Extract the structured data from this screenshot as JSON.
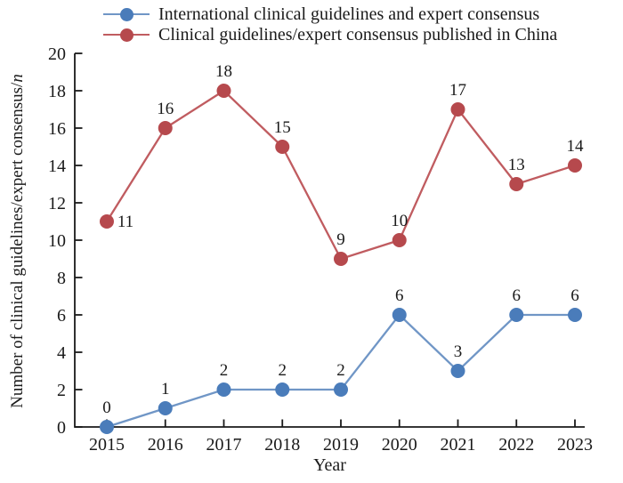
{
  "window": {
    "background": "#ffffff",
    "ink_color": "#1a1a1a"
  },
  "axes": {
    "xlabel": "Year",
    "ylabel_main": "Number of clinical guidelines/expert consensus/",
    "ylabel_italic": "n"
  },
  "chart_data": {
    "type": "line",
    "title": "",
    "x": [
      "2015",
      "2016",
      "2017",
      "2018",
      "2019",
      "2020",
      "2021",
      "2022",
      "2023"
    ],
    "xlabel": "Year",
    "ylabel": "Number of clinical guidelines/expert consensus/n",
    "ylim": [
      0,
      20
    ],
    "ytick_step": 2,
    "yticks": [
      0,
      2,
      4,
      6,
      8,
      10,
      12,
      14,
      16,
      18,
      20
    ],
    "grid": false,
    "legend_position": "top",
    "data_labels": true,
    "series": [
      {
        "name": "International clinical guidelines and expert consensus",
        "values": [
          0,
          1,
          2,
          2,
          2,
          6,
          3,
          6,
          6
        ],
        "marker": "circle",
        "marker_color": "#4a7cba",
        "line_color": "#7096c6"
      },
      {
        "name": "Clinical guidelines/expert consensus published in China",
        "values": [
          11,
          16,
          18,
          15,
          9,
          10,
          17,
          13,
          14
        ],
        "marker": "circle",
        "marker_color": "#b6494d",
        "line_color": "#c05c60",
        "label_offset_overrides": {
          "0": [
            21,
            6
          ]
        }
      }
    ]
  }
}
